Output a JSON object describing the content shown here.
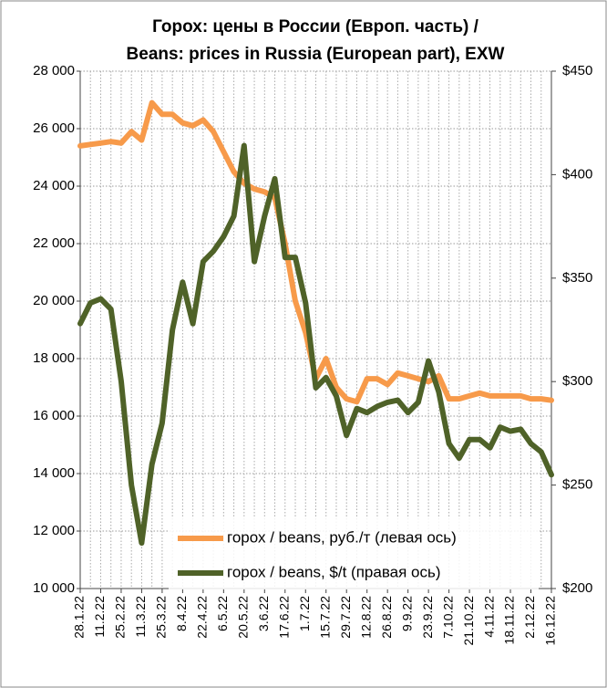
{
  "chart_data": {
    "type": "line",
    "title": "Горох: цены в России (Европ. часть) /",
    "subtitle": "Beans: prices in Russia (European part), EXW",
    "categories": [
      "28.1.22",
      null,
      "11.2.22",
      null,
      "25.2.22",
      null,
      "11.3.22",
      null,
      "25.3.22",
      null,
      "8.4.22",
      null,
      "22.4.22",
      null,
      "6.5.22",
      null,
      "20.5.22",
      null,
      "3.6.22",
      null,
      "17.6.22",
      null,
      "1.7.22",
      null,
      "15.7.22",
      null,
      "29.7.22",
      null,
      "12.8.22",
      null,
      "26.8.22",
      null,
      "9.9.22",
      null,
      "23.9.22",
      null,
      "7.10.22",
      null,
      "21.10.22",
      null,
      "4.11.22",
      null,
      "18.11.22",
      null,
      "2.12.22",
      null,
      "16.12.22"
    ],
    "series": [
      {
        "name": "горох / beans, руб./т (левая ось)",
        "color": "#f79a4a",
        "values": [
          25400,
          25450,
          25500,
          25550,
          25500,
          25900,
          25600,
          26900,
          26500,
          26500,
          26200,
          26100,
          26300,
          25900,
          25200,
          24500,
          24100,
          23900,
          23800,
          23600,
          22000,
          20000,
          18900,
          17300,
          18000,
          17000,
          16600,
          16500,
          17300,
          17300,
          17100,
          17500,
          17400,
          17300,
          17200,
          17400,
          16600,
          16600,
          16700,
          16800,
          16700,
          16700,
          16700,
          16700,
          16600,
          16600,
          16550
        ]
      },
      {
        "name": "горох / beans, $/t  (правая ось)",
        "color": "#4f6228",
        "axis": "y2",
        "values": [
          328,
          338,
          340,
          335,
          300,
          250,
          222,
          260,
          280,
          325,
          348,
          328,
          358,
          363,
          370,
          380,
          414,
          358,
          380,
          398,
          360,
          360,
          338,
          297,
          302,
          293,
          274,
          287,
          285,
          288,
          290,
          291,
          285,
          290,
          310,
          295,
          270,
          263,
          272,
          272,
          268,
          278,
          276,
          277,
          270,
          266,
          255
        ]
      }
    ],
    "ylim": [
      10000,
      28000
    ],
    "yticks": [
      {
        "value": 10000,
        "label": "10 000"
      },
      {
        "value": 12000,
        "label": "12 000"
      },
      {
        "value": 14000,
        "label": "14 000"
      },
      {
        "value": 16000,
        "label": "16 000"
      },
      {
        "value": 18000,
        "label": "18 000"
      },
      {
        "value": 20000,
        "label": "20 000"
      },
      {
        "value": 22000,
        "label": "22 000"
      },
      {
        "value": 24000,
        "label": "24 000"
      },
      {
        "value": 26000,
        "label": "26 000"
      },
      {
        "value": 28000,
        "label": "28 000"
      }
    ],
    "y2lim": [
      200,
      450
    ],
    "y2ticks": [
      {
        "value": 200,
        "label": "$200"
      },
      {
        "value": 250,
        "label": "$250"
      },
      {
        "value": 300,
        "label": "$300"
      },
      {
        "value": 350,
        "label": "$350"
      },
      {
        "value": 400,
        "label": "$400"
      },
      {
        "value": 450,
        "label": "$450"
      }
    ],
    "grid": true
  }
}
